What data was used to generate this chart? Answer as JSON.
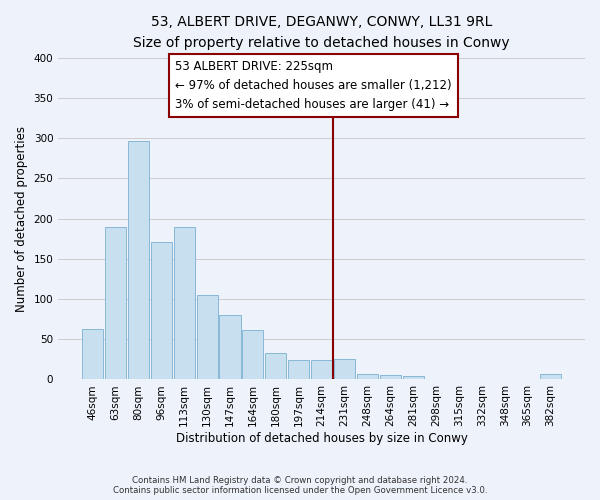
{
  "title": "53, ALBERT DRIVE, DEGANWY, CONWY, LL31 9RL",
  "subtitle": "Size of property relative to detached houses in Conwy",
  "xlabel": "Distribution of detached houses by size in Conwy",
  "ylabel": "Number of detached properties",
  "bar_labels": [
    "46sqm",
    "63sqm",
    "80sqm",
    "96sqm",
    "113sqm",
    "130sqm",
    "147sqm",
    "164sqm",
    "180sqm",
    "197sqm",
    "214sqm",
    "231sqm",
    "248sqm",
    "264sqm",
    "281sqm",
    "298sqm",
    "315sqm",
    "332sqm",
    "348sqm",
    "365sqm",
    "382sqm"
  ],
  "bar_heights": [
    63,
    190,
    296,
    171,
    190,
    105,
    80,
    62,
    33,
    24,
    24,
    25,
    7,
    6,
    4,
    1,
    0,
    0,
    0,
    0,
    7
  ],
  "bar_color": "#c8dff0",
  "bar_edge_color": "#88b8d8",
  "marker_label": "53 ALBERT DRIVE: 225sqm",
  "annotation_line1": "← 97% of detached houses are smaller (1,212)",
  "annotation_line2": "3% of semi-detached houses are larger (41) →",
  "marker_color": "#8b0000",
  "ylim": [
    0,
    400
  ],
  "yticks": [
    0,
    50,
    100,
    150,
    200,
    250,
    300,
    350,
    400
  ],
  "background_color": "#eef2fa",
  "plot_bg_color": "#eef2fa",
  "grid_color": "#cccccc",
  "footer_line1": "Contains HM Land Registry data © Crown copyright and database right 2024.",
  "footer_line2": "Contains public sector information licensed under the Open Government Licence v3.0.",
  "title_fontsize": 10,
  "subtitle_fontsize": 9,
  "axis_label_fontsize": 8.5,
  "tick_fontsize": 7.5,
  "annotation_fontsize": 8.5
}
